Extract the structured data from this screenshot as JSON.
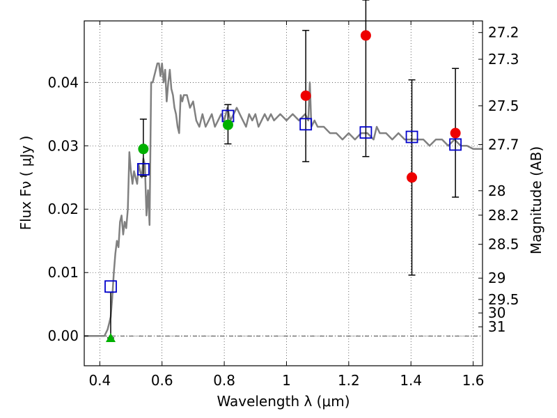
{
  "chart_data": {
    "type": "scatter",
    "xlabel": "Wavelength  λ (μm)",
    "ylabel": "Flux  Fν  ( μJy )",
    "ylabel_right": "Magnitude (AB)",
    "xlim": [
      0.35,
      1.63
    ],
    "ylim": [
      -0.0047,
      0.0497
    ],
    "grid": true,
    "x_ticks": [
      {
        "value": 0.4,
        "label": "0.4"
      },
      {
        "value": 0.6,
        "label": "0.6"
      },
      {
        "value": 0.8,
        "label": "0.8"
      },
      {
        "value": 1.0,
        "label": "1"
      },
      {
        "value": 1.2,
        "label": "1.2"
      },
      {
        "value": 1.4,
        "label": "1.4"
      },
      {
        "value": 1.6,
        "label": "1.6"
      }
    ],
    "y_ticks": [
      {
        "value": 0.0,
        "label": "0.00"
      },
      {
        "value": 0.01,
        "label": "0.01"
      },
      {
        "value": 0.02,
        "label": "0.02"
      },
      {
        "value": 0.03,
        "label": "0.03"
      },
      {
        "value": 0.04,
        "label": "0.04"
      }
    ],
    "magnitude_ticks": [
      "27.2",
      "27.3",
      "27.5",
      "27.7",
      "28",
      "28.2",
      "28.5",
      "29",
      "29.5",
      "30",
      "31"
    ],
    "colors": {
      "model": "#808080",
      "model_photometry": "#0000cc",
      "detection": "#00b000",
      "low_significance": "#ee0000",
      "error_bar": "#000000",
      "zero_line": "#000000"
    },
    "series": [
      {
        "marker": "line",
        "color": "#808080",
        "x": [
          0.35,
          0.415,
          0.425,
          0.43,
          0.435,
          0.44,
          0.445,
          0.45,
          0.455,
          0.46,
          0.465,
          0.47,
          0.475,
          0.48,
          0.485,
          0.49,
          0.495,
          0.5,
          0.505,
          0.51,
          0.515,
          0.52,
          0.525,
          0.53,
          0.535,
          0.54,
          0.545,
          0.55,
          0.555,
          0.56,
          0.565,
          0.57,
          0.575,
          0.58,
          0.585,
          0.59,
          0.595,
          0.6,
          0.605,
          0.61,
          0.615,
          0.62,
          0.625,
          0.63,
          0.635,
          0.64,
          0.645,
          0.65,
          0.655,
          0.66,
          0.665,
          0.67,
          0.68,
          0.69,
          0.7,
          0.71,
          0.72,
          0.73,
          0.74,
          0.75,
          0.76,
          0.77,
          0.78,
          0.79,
          0.8,
          0.81,
          0.82,
          0.83,
          0.84,
          0.85,
          0.86,
          0.87,
          0.88,
          0.89,
          0.9,
          0.91,
          0.92,
          0.93,
          0.94,
          0.95,
          0.96,
          0.98,
          1.0,
          1.02,
          1.04,
          1.06,
          1.07,
          1.075,
          1.08,
          1.09,
          1.1,
          1.12,
          1.14,
          1.16,
          1.18,
          1.2,
          1.22,
          1.24,
          1.26,
          1.28,
          1.29,
          1.3,
          1.32,
          1.34,
          1.36,
          1.38,
          1.4,
          1.42,
          1.44,
          1.46,
          1.48,
          1.5,
          1.52,
          1.54,
          1.56,
          1.58,
          1.6,
          1.63
        ],
        "y": [
          0.0,
          0.0,
          0.001,
          0.002,
          0.003,
          0.006,
          0.01,
          0.013,
          0.015,
          0.014,
          0.018,
          0.019,
          0.016,
          0.018,
          0.017,
          0.02,
          0.029,
          0.026,
          0.024,
          0.026,
          0.025,
          0.024,
          0.027,
          0.026,
          0.025,
          0.028,
          0.027,
          0.019,
          0.023,
          0.0175,
          0.04,
          0.04,
          0.041,
          0.042,
          0.043,
          0.043,
          0.041,
          0.043,
          0.04,
          0.042,
          0.037,
          0.04,
          0.042,
          0.039,
          0.038,
          0.036,
          0.035,
          0.033,
          0.032,
          0.038,
          0.037,
          0.038,
          0.038,
          0.036,
          0.037,
          0.034,
          0.033,
          0.035,
          0.033,
          0.034,
          0.035,
          0.033,
          0.034,
          0.035,
          0.034,
          0.036,
          0.034,
          0.035,
          0.036,
          0.035,
          0.034,
          0.033,
          0.035,
          0.034,
          0.035,
          0.033,
          0.034,
          0.035,
          0.034,
          0.035,
          0.034,
          0.035,
          0.034,
          0.035,
          0.034,
          0.035,
          0.034,
          0.04,
          0.033,
          0.034,
          0.033,
          0.033,
          0.032,
          0.032,
          0.031,
          0.032,
          0.031,
          0.032,
          0.032,
          0.031,
          0.033,
          0.032,
          0.032,
          0.031,
          0.032,
          0.031,
          0.031,
          0.031,
          0.031,
          0.03,
          0.031,
          0.031,
          0.03,
          0.031,
          0.03,
          0.03,
          0.0295,
          0.0295
        ]
      },
      {
        "marker": "open-square",
        "color": "#0000cc",
        "x": [
          0.435,
          0.54,
          0.812,
          1.062,
          1.255,
          1.403,
          1.543
        ],
        "y": [
          0.0078,
          0.0263,
          0.0347,
          0.0334,
          0.0321,
          0.0314,
          0.0302
        ]
      },
      {
        "marker": "filled-circle",
        "color": "#00b000",
        "x": [
          0.54,
          0.812
        ],
        "y": [
          0.0295,
          0.0333
        ],
        "yerr_low": [
          0.0043,
          0.003
        ],
        "yerr_high": [
          0.0047,
          0.0032
        ]
      },
      {
        "marker": "filled-circle",
        "color": "#ee0000",
        "x": [
          1.062,
          1.255,
          1.403,
          1.543
        ],
        "y": [
          0.0379,
          0.0474,
          0.025,
          0.032
        ],
        "yerr_low": [
          0.0104,
          0.0191,
          0.0154,
          0.0101
        ],
        "yerr_high": [
          0.0103,
          0.0056,
          0.0154,
          0.0102
        ]
      },
      {
        "marker": "filled-triangle",
        "color": "#00b000",
        "x": [
          0.435
        ],
        "y": [
          -0.0003
        ],
        "yerr_low": [
          0.0
        ],
        "yerr_high": [
          0.0072
        ]
      }
    ]
  }
}
